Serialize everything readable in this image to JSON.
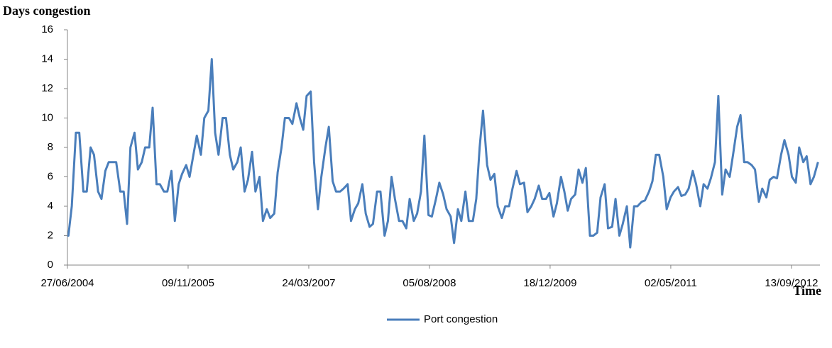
{
  "chart_data": {
    "type": "line",
    "y_label": "Days congestion",
    "x_label": "Time",
    "x": [
      "27/06/2004",
      "01/07/2004",
      "15/07/2004",
      "01/08/2004",
      "15/08/2004",
      "01/09/2004",
      "15/09/2004",
      "01/10/2004",
      "15/10/2004",
      "01/11/2004",
      "15/11/2004",
      "01/12/2004",
      "15/12/2004",
      "01/01/2005",
      "15/01/2005",
      "01/02/2005",
      "15/02/2005",
      "01/03/2005",
      "15/03/2005",
      "01/04/2005",
      "15/04/2005",
      "01/05/2005",
      "15/05/2005",
      "01/06/2005",
      "15/06/2005",
      "01/07/2005",
      "15/07/2005",
      "01/08/2005",
      "15/08/2005",
      "01/09/2005",
      "15/09/2005",
      "01/10/2005",
      "15/10/2005",
      "01/11/2005",
      "15/11/2005",
      "01/12/2005",
      "15/12/2005",
      "01/01/2006",
      "15/01/2006",
      "01/02/2006",
      "15/02/2006",
      "01/03/2006",
      "15/03/2006",
      "01/04/2006",
      "15/04/2006",
      "01/05/2006",
      "15/05/2006",
      "01/06/2006",
      "15/06/2006",
      "01/07/2006",
      "15/07/2006",
      "01/08/2006",
      "15/08/2006",
      "01/09/2006",
      "15/09/2006",
      "01/10/2006",
      "15/10/2006",
      "01/11/2006",
      "15/11/2006",
      "01/12/2006",
      "15/12/2006",
      "01/01/2007",
      "15/01/2007",
      "01/02/2007",
      "15/02/2007",
      "01/03/2007",
      "15/03/2007",
      "01/04/2007",
      "15/04/2007",
      "01/05/2007",
      "15/05/2007",
      "01/06/2007",
      "15/06/2007",
      "01/07/2007",
      "15/07/2007",
      "01/08/2007",
      "15/08/2007",
      "01/09/2007",
      "15/09/2007",
      "01/10/2007",
      "15/10/2007",
      "01/11/2007",
      "15/11/2007",
      "01/12/2007",
      "15/12/2007",
      "01/01/2008",
      "15/01/2008",
      "01/02/2008",
      "15/02/2008",
      "01/03/2008",
      "15/03/2008",
      "01/04/2008",
      "15/04/2008",
      "01/05/2008",
      "15/05/2008",
      "01/06/2008",
      "15/06/2008",
      "01/07/2008",
      "15/07/2008",
      "01/08/2008",
      "15/08/2008",
      "01/09/2008",
      "15/09/2008",
      "01/10/2008",
      "15/10/2008",
      "01/11/2008",
      "15/11/2008",
      "01/12/2008",
      "15/12/2008",
      "01/01/2009",
      "15/01/2009",
      "01/02/2009",
      "15/02/2009",
      "01/03/2009",
      "15/03/2009",
      "01/04/2009",
      "15/04/2009",
      "01/05/2009",
      "15/05/2009",
      "01/06/2009",
      "15/06/2009",
      "01/07/2009",
      "15/07/2009",
      "01/08/2009",
      "15/08/2009",
      "01/09/2009",
      "15/09/2009",
      "01/10/2009",
      "15/10/2009",
      "01/11/2009",
      "15/11/2009",
      "01/12/2009",
      "15/12/2009",
      "01/01/2010",
      "15/01/2010",
      "01/02/2010",
      "15/02/2010",
      "01/03/2010",
      "15/03/2010",
      "01/04/2010",
      "15/04/2010",
      "01/05/2010",
      "15/05/2010",
      "01/06/2010",
      "15/06/2010",
      "01/07/2010",
      "15/07/2010",
      "01/08/2010",
      "15/08/2010",
      "01/09/2010",
      "15/09/2010",
      "01/10/2010",
      "15/10/2010",
      "01/11/2010",
      "15/11/2010",
      "01/12/2010",
      "15/12/2010",
      "01/01/2011",
      "15/01/2011",
      "01/02/2011",
      "15/02/2011",
      "01/03/2011",
      "15/03/2011",
      "01/04/2011",
      "15/04/2011",
      "01/05/2011",
      "15/05/2011",
      "01/06/2011",
      "15/06/2011",
      "01/07/2011",
      "15/07/2011",
      "01/08/2011",
      "15/08/2011",
      "01/09/2011",
      "15/09/2011",
      "01/10/2011",
      "15/10/2011",
      "01/11/2011",
      "15/11/2011",
      "01/12/2011",
      "15/12/2011",
      "01/01/2012",
      "15/01/2012",
      "01/02/2012",
      "15/02/2012",
      "01/03/2012",
      "15/03/2012",
      "01/04/2012",
      "15/04/2012",
      "01/05/2012",
      "15/05/2012",
      "01/06/2012",
      "15/06/2012",
      "01/07/2012",
      "15/07/2012",
      "01/08/2012",
      "15/08/2012",
      "01/09/2012",
      "15/09/2012",
      "01/10/2012",
      "15/10/2012",
      "01/11/2012",
      "15/11/2012",
      "01/12/2012",
      "15/12/2012",
      "01/01/2013"
    ],
    "series": [
      {
        "name": "Port congestion",
        "color": "#4a7ebb",
        "values": [
          2,
          2,
          4,
          9,
          9,
          5,
          5,
          8,
          7.5,
          5,
          4.5,
          6.4,
          7,
          7,
          7,
          5,
          5,
          2.8,
          8,
          9,
          6.5,
          7,
          8,
          8,
          10.7,
          5.5,
          5.5,
          5,
          5,
          6.4,
          3,
          5.5,
          6.2,
          6.8,
          6,
          7.5,
          8.8,
          7.5,
          10,
          10.5,
          14,
          9,
          7.5,
          10,
          10,
          7.5,
          6.5,
          7,
          8,
          5,
          5.8,
          7.7,
          5,
          6,
          3,
          3.8,
          3.2,
          3.5,
          6.3,
          8,
          10,
          10,
          9.6,
          11,
          10,
          9.2,
          11.5,
          11.8,
          7,
          3.8,
          6,
          8,
          9.4,
          5.7,
          5,
          5,
          5.2,
          5.5,
          3,
          3.8,
          4.2,
          5.5,
          3.5,
          2.6,
          2.8,
          5,
          5,
          2,
          3,
          6,
          4.5,
          3,
          3,
          2.5,
          4.5,
          3,
          3.5,
          5,
          8.8,
          3.4,
          3.3,
          4.5,
          5.6,
          4.8,
          3.8,
          3.3,
          1.5,
          3.8,
          3,
          5,
          3,
          3,
          4.5,
          8,
          10.5,
          6.8,
          5.8,
          6.2,
          4,
          3.2,
          4,
          4,
          5.2,
          6.4,
          5.5,
          5.6,
          3.6,
          4,
          4.5,
          5.4,
          4.5,
          4.5,
          4.9,
          3.3,
          4.2,
          6,
          5,
          3.7,
          4.5,
          4.8,
          6.5,
          5.6,
          6.6,
          2,
          2,
          2.2,
          4.6,
          5.5,
          2.5,
          2.6,
          4.5,
          2,
          2.8,
          4,
          1.2,
          4,
          4,
          4.3,
          4.4,
          5,
          5.7,
          7.5,
          7.5,
          6,
          3.8,
          4.6,
          5,
          5.3,
          4.7,
          4.8,
          5.2,
          6.4,
          5.5,
          4,
          5.5,
          5.2,
          5.9,
          7,
          11.5,
          4.8,
          6.5,
          6,
          7.5,
          9.4,
          10.2,
          7,
          7,
          6.8,
          6.5,
          4.3,
          5.2,
          4.6,
          5.8,
          6,
          5.9,
          7.5,
          8.5,
          7.5,
          6,
          5.6,
          8,
          7,
          7.4,
          5.5,
          6,
          7
        ]
      }
    ],
    "xlim": [
      "27/06/2004",
      "09/01/2013"
    ],
    "xticks": [
      "27/06/2004",
      "09/11/2005",
      "24/03/2007",
      "05/08/2008",
      "18/12/2009",
      "02/05/2011",
      "13/09/2012"
    ],
    "ylim": [
      0,
      16
    ],
    "yticks": [
      0,
      2,
      4,
      6,
      8,
      10,
      12,
      14,
      16
    ],
    "grid": false,
    "legend": "bottom"
  }
}
